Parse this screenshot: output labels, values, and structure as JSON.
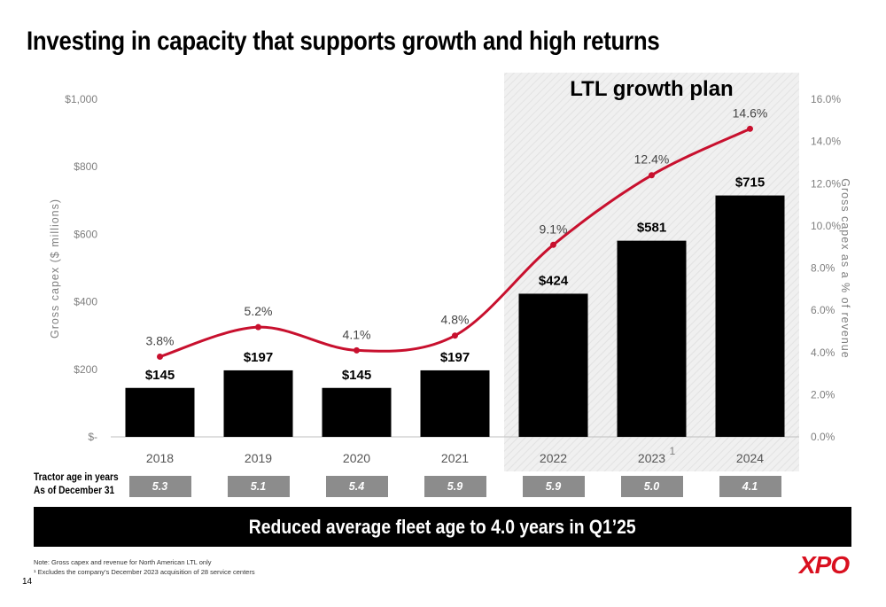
{
  "title": "Investing in capacity that supports growth and high returns",
  "chart_data": {
    "type": "bar",
    "categories": [
      "2018",
      "2019",
      "2020",
      "2021",
      "2022",
      "2023",
      "2024"
    ],
    "category_superscripts": [
      "",
      "",
      "",
      "",
      "",
      "1",
      ""
    ],
    "series": [
      {
        "values": [
          145,
          197,
          145,
          197,
          424,
          581,
          715
        ],
        "labels": [
          "$145",
          "$197",
          "$145",
          "$197",
          "$424",
          "$581",
          "$715"
        ],
        "color": "#000000",
        "axis": "left"
      },
      {
        "type": "line",
        "values": [
          3.8,
          5.2,
          4.1,
          4.8,
          9.1,
          12.4,
          14.6
        ],
        "labels": [
          "3.8%",
          "5.2%",
          "4.1%",
          "4.8%",
          "9.1%",
          "12.4%",
          "14.6%"
        ],
        "color": "#c8102e",
        "axis": "right"
      }
    ],
    "ylabel": "Gross capex ($ millions)",
    "y2label": "Gross capex as a % of revenue",
    "ylim": [
      0,
      1000
    ],
    "y2lim": [
      0,
      16
    ],
    "yticks": [
      0,
      200,
      400,
      600,
      800,
      1000
    ],
    "ytick_labels": [
      "$-",
      "$200",
      "$400",
      "$600",
      "$800",
      "$1,000"
    ],
    "y2ticks": [
      0,
      2,
      4,
      6,
      8,
      10,
      12,
      14,
      16
    ],
    "y2tick_labels": [
      "0.0%",
      "2.0%",
      "4.0%",
      "6.0%",
      "8.0%",
      "10.0%",
      "12.0%",
      "14.0%",
      "16.0%"
    ],
    "highlight_band": {
      "from": "2022",
      "to": "2024",
      "label": "LTL growth plan"
    },
    "grid": false
  },
  "tractor_age": {
    "label_line1": "Tractor age in years",
    "label_line2": "As of December 31",
    "values": [
      "5.3",
      "5.1",
      "5.4",
      "5.9",
      "5.9",
      "5.0",
      "4.1"
    ]
  },
  "banner": "Reduced average fleet age to 4.0 years in Q1’25",
  "notes": {
    "line1": "Note: Gross capex and revenue for North American LTL only",
    "line2": "¹ Excludes the company’s December 2023 acquisition of 28 service centers"
  },
  "page_number": "14",
  "logo": "XPO",
  "colors": {
    "bar": "#000000",
    "line": "#c8102e",
    "band": "#efefef",
    "age_box": "#8c8c8c",
    "logo": "#d9101f"
  }
}
